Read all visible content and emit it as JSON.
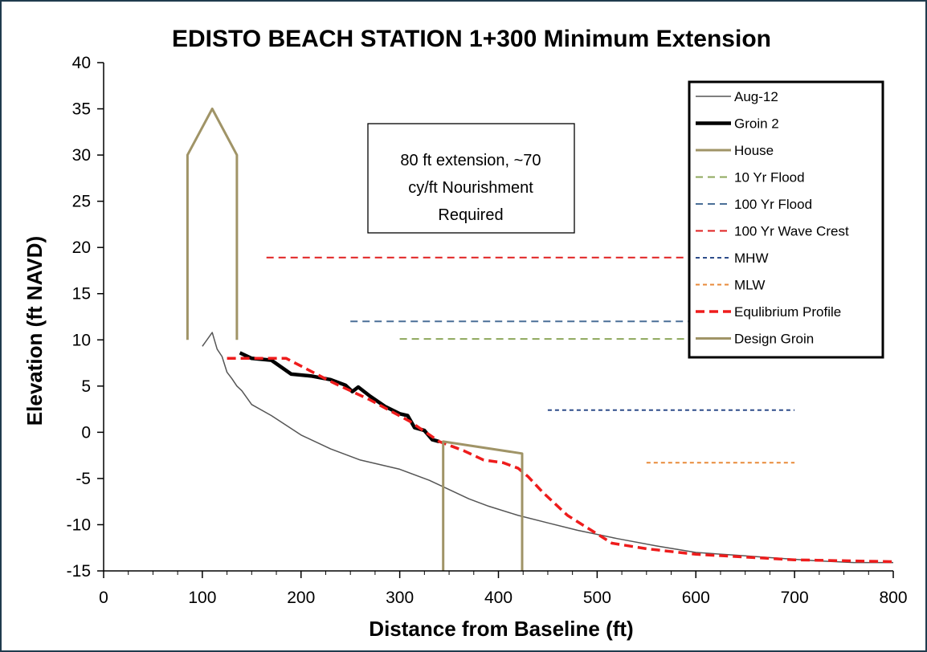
{
  "chart_data": {
    "type": "line",
    "title": "EDISTO BEACH STATION 1+300 Minimum Extension",
    "xlabel": "Distance from Baseline (ft)",
    "ylabel": "Elevation (ft NAVD)",
    "xlim": [
      0,
      800
    ],
    "ylim": [
      -15,
      40
    ],
    "xticks": [
      0,
      100,
      200,
      300,
      400,
      500,
      600,
      700,
      800
    ],
    "yticks": [
      -15,
      -10,
      -5,
      0,
      5,
      10,
      15,
      20,
      25,
      30,
      35,
      40
    ],
    "grid": false,
    "legend_position": "top-right",
    "annotation": {
      "lines": [
        "80 ft extension, ~70",
        "cy/ft Nourishment",
        "Required"
      ]
    },
    "series": [
      {
        "name": "Aug-12",
        "color": "#555555",
        "style": "solid-thin",
        "points": [
          [
            100,
            9.3
          ],
          [
            110,
            10.8
          ],
          [
            115,
            9
          ],
          [
            120,
            8.2
          ],
          [
            125,
            6.5
          ],
          [
            130,
            5.8
          ],
          [
            135,
            5
          ],
          [
            140,
            4.5
          ],
          [
            150,
            3
          ],
          [
            170,
            1.8
          ],
          [
            200,
            -0.3
          ],
          [
            230,
            -1.8
          ],
          [
            260,
            -3
          ],
          [
            300,
            -4
          ],
          [
            330,
            -5.2
          ],
          [
            350,
            -6.2
          ],
          [
            370,
            -7.2
          ],
          [
            390,
            -8
          ],
          [
            420,
            -9
          ],
          [
            450,
            -9.8
          ],
          [
            480,
            -10.6
          ],
          [
            520,
            -11.5
          ],
          [
            560,
            -12.3
          ],
          [
            600,
            -13
          ],
          [
            640,
            -13.3
          ],
          [
            680,
            -13.6
          ],
          [
            720,
            -13.9
          ],
          [
            760,
            -14.1
          ],
          [
            800,
            -14.1
          ]
        ]
      },
      {
        "name": "Groin 2",
        "color": "#000000",
        "style": "solid-thick",
        "points": [
          [
            138,
            8.6
          ],
          [
            150,
            8
          ],
          [
            170,
            7.8
          ],
          [
            190,
            6.3
          ],
          [
            210,
            6.1
          ],
          [
            230,
            5.7
          ],
          [
            245,
            5.1
          ],
          [
            252,
            4.4
          ],
          [
            258,
            4.9
          ],
          [
            270,
            3.9
          ],
          [
            285,
            2.8
          ],
          [
            300,
            2
          ],
          [
            308,
            1.8
          ],
          [
            315,
            0.5
          ],
          [
            325,
            0.2
          ],
          [
            333,
            -0.8
          ],
          [
            340,
            -1
          ]
        ]
      },
      {
        "name": "House",
        "color": "#a09467",
        "style": "solid",
        "points": [
          [
            85,
            10
          ],
          [
            85,
            30
          ],
          [
            110,
            35
          ],
          [
            135,
            30
          ],
          [
            135,
            10
          ]
        ]
      },
      {
        "name": "10 Yr Flood",
        "color": "#8da75b",
        "style": "dashed",
        "points": [
          [
            300,
            10.1
          ],
          [
            700,
            10.1
          ]
        ]
      },
      {
        "name": "100 Yr Flood",
        "color": "#4a6f97",
        "style": "dashed",
        "points": [
          [
            250,
            12
          ],
          [
            700,
            12
          ]
        ]
      },
      {
        "name": "100 Yr Wave Crest",
        "color": "#e02020",
        "style": "dashed",
        "points": [
          [
            165,
            18.9
          ],
          [
            700,
            18.9
          ]
        ]
      },
      {
        "name": "MHW",
        "color": "#2e4d8a",
        "style": "dashed-fine",
        "points": [
          [
            450,
            2.4
          ],
          [
            700,
            2.4
          ]
        ]
      },
      {
        "name": "MLW",
        "color": "#e88a3a",
        "style": "dashed-fine",
        "points": [
          [
            550,
            -3.3
          ],
          [
            700,
            -3.3
          ]
        ]
      },
      {
        "name": "Equlibrium Profile",
        "color": "#ee1c1c",
        "style": "dashed-thick",
        "points": [
          [
            125,
            8
          ],
          [
            185,
            8
          ],
          [
            230,
            5.5
          ],
          [
            270,
            3.5
          ],
          [
            310,
            1.2
          ],
          [
            340,
            -1
          ],
          [
            365,
            -2
          ],
          [
            385,
            -3
          ],
          [
            405,
            -3.3
          ],
          [
            420,
            -3.9
          ],
          [
            430,
            -4.8
          ],
          [
            445,
            -6.5
          ],
          [
            470,
            -9
          ],
          [
            500,
            -11
          ],
          [
            515,
            -12
          ],
          [
            550,
            -12.6
          ],
          [
            600,
            -13.2
          ],
          [
            700,
            -13.8
          ],
          [
            800,
            -14
          ]
        ]
      },
      {
        "name": "Design Groin",
        "color": "#a09467",
        "style": "solid",
        "points": [
          [
            344,
            -15
          ],
          [
            344,
            -1
          ],
          [
            424,
            -2.3
          ],
          [
            424,
            -15
          ]
        ]
      }
    ]
  }
}
